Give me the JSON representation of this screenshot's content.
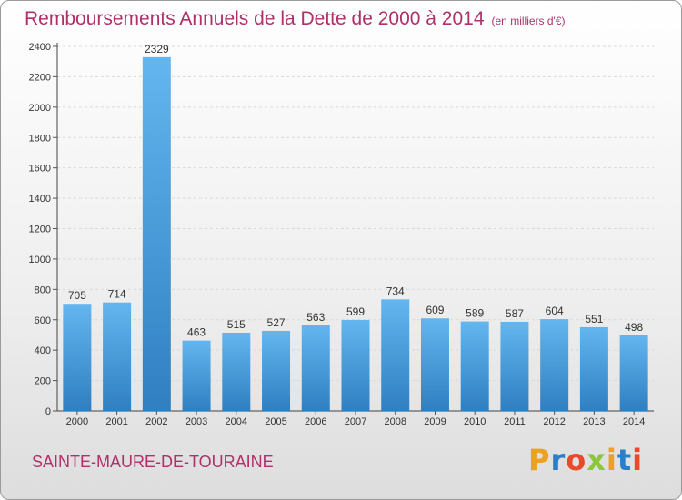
{
  "header": {
    "title": "Remboursements Annuels de la Dette de 2000 à 2014",
    "subtitle": "(en milliers d'€)"
  },
  "footer": {
    "commune": "SAINTE-MAURE-DE-TOURAINE",
    "brand": "Proxiti"
  },
  "colors": {
    "accent": "#b0306a",
    "bar_light": "#63b6ef",
    "bar_dark": "#2f7fc1",
    "brand_letters": [
      "#f0a020",
      "#2a7fc8",
      "#e84b2c",
      "#8cc63e",
      "#f0a020",
      "#2a7fc8",
      "#e84b2c"
    ]
  },
  "chart_data": {
    "type": "bar",
    "title": "Remboursements Annuels de la Dette de 2000 à 2014",
    "subtitle": "(en milliers d'€)",
    "categories": [
      "2000",
      "2001",
      "2002",
      "2003",
      "2004",
      "2005",
      "2006",
      "2007",
      "2008",
      "2009",
      "2010",
      "2011",
      "2012",
      "2013",
      "2014"
    ],
    "values": [
      705,
      714,
      2329,
      463,
      515,
      527,
      563,
      599,
      734,
      609,
      589,
      587,
      604,
      551,
      498
    ],
    "data_labels": [
      "705",
      "714",
      "2329",
      "463",
      "515",
      "527",
      "563",
      "599",
      "734",
      "609",
      "589",
      "587",
      "604",
      "551",
      "498"
    ],
    "yticks": [
      "0",
      "200",
      "400",
      "600",
      "800",
      "1000",
      "1200",
      "1400",
      "1600",
      "1800",
      "2000",
      "2200",
      "2400"
    ],
    "ylim": [
      0,
      2400
    ],
    "grid": true,
    "xlabel": "",
    "ylabel": ""
  }
}
